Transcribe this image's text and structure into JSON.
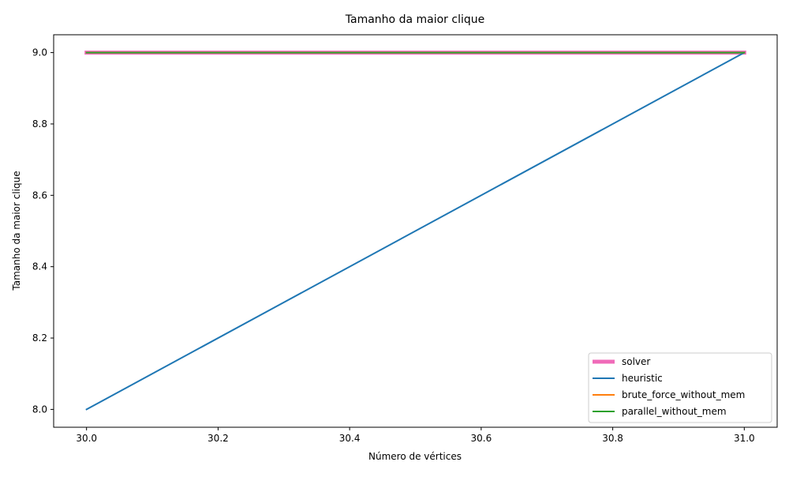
{
  "chart_data": {
    "type": "line",
    "title": "Tamanho da maior clique",
    "xlabel": "Número de vértices",
    "ylabel": "Tamanho da maior clique",
    "xlim": [
      29.95,
      31.05
    ],
    "ylim": [
      7.95,
      9.05
    ],
    "x_ticks": [
      30.0,
      30.2,
      30.4,
      30.6,
      30.8,
      31.0
    ],
    "x_tick_labels": [
      "30.0",
      "30.2",
      "30.4",
      "30.6",
      "30.8",
      "31.0"
    ],
    "y_ticks": [
      8.0,
      8.2,
      8.4,
      8.6,
      8.8,
      9.0
    ],
    "y_tick_labels": [
      "8.0",
      "8.2",
      "8.4",
      "8.6",
      "8.8",
      "9.0"
    ],
    "grid": false,
    "legend_position": "bottom-right",
    "series": [
      {
        "name": "solver",
        "x": [
          30,
          31
        ],
        "y": [
          9,
          9
        ],
        "color": "#f06bb9",
        "thick": true
      },
      {
        "name": "heuristic",
        "x": [
          30,
          31
        ],
        "y": [
          8,
          9
        ],
        "color": "#1f77b4",
        "thick": false
      },
      {
        "name": "brute_force_without_mem",
        "x": [
          30,
          31
        ],
        "y": [
          9,
          9
        ],
        "color": "#ff7f0e",
        "thick": false
      },
      {
        "name": "parallel_without_mem",
        "x": [
          30,
          31
        ],
        "y": [
          9,
          9
        ],
        "color": "#2ca02c",
        "thick": false
      }
    ]
  }
}
